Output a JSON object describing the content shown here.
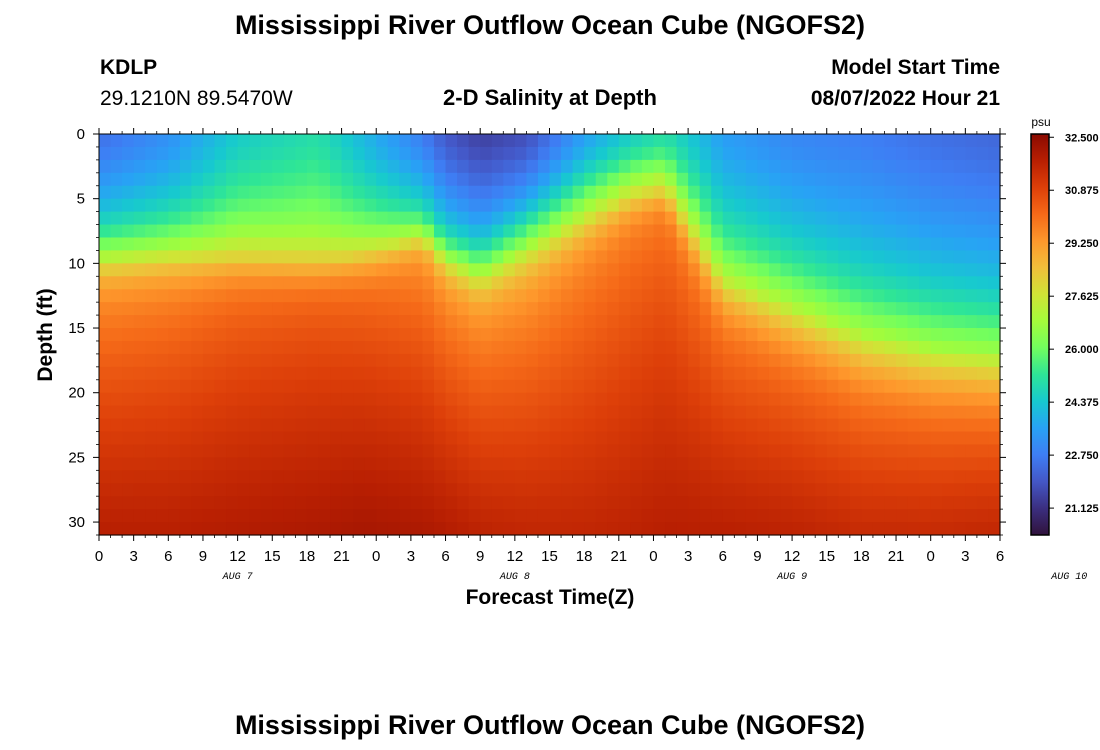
{
  "header": {
    "title": "Mississippi River Outflow Ocean Cube (NGOFS2)",
    "station_id": "KDLP",
    "coords": "29.1210N  89.5470W",
    "plot_title": "2-D Salinity at Depth",
    "model_start_label": "Model Start Time",
    "model_start_value": "08/07/2022 Hour 21"
  },
  "footer": {
    "title": "Mississippi River Outflow Ocean Cube (NGOFS2)"
  },
  "colors": {
    "palette": [
      "#30123b",
      "#3b2f80",
      "#4457c6",
      "#3e7ef4",
      "#28a2f5",
      "#17c9cf",
      "#2ee597",
      "#72fe5e",
      "#a4fc3b",
      "#d0e436",
      "#f0bf3a",
      "#fe982c",
      "#f56918",
      "#dd3f09",
      "#b81f02",
      "#8a0a01"
    ]
  },
  "chart_data": {
    "type": "heatmap",
    "title": "2-D Salinity at Depth",
    "xlabel": "Forecast Time(Z)",
    "ylabel": "Depth (ft)",
    "x_ticks": [
      "0",
      "3",
      "6",
      "9",
      "12",
      "15",
      "18",
      "21",
      "0",
      "3",
      "6",
      "9",
      "12",
      "15",
      "18",
      "21",
      "0",
      "3",
      "6",
      "9",
      "12",
      "15",
      "18",
      "21",
      "0",
      "3",
      "6"
    ],
    "date_labels": [
      {
        "label": "AUG 7",
        "hour_index": 3
      },
      {
        "label": "AUG 8",
        "hour_index": 27
      },
      {
        "label": "AUG 9",
        "hour_index": 51
      },
      {
        "label": "AUG 10",
        "hour_index": 75
      }
    ],
    "x_range_hours": [
      0,
      78
    ],
    "y_ticks": [
      0,
      5,
      10,
      15,
      20,
      25,
      30
    ],
    "ylim": [
      0,
      31
    ],
    "colorbar": {
      "unit": "psu",
      "ticks": [
        "32.500",
        "30.875",
        "29.250",
        "27.625",
        "26.000",
        "24.375",
        "22.750",
        "21.125"
      ],
      "min": 20.3,
      "max": 32.6
    },
    "profile_keypoints": [
      {
        "hour": 0,
        "halocline_ft": 9.5,
        "width_ft": 2.2,
        "surface": 22.5,
        "deep": 31.8
      },
      {
        "hour": 6,
        "halocline_ft": 9.3,
        "width_ft": 2.4,
        "surface": 23.2,
        "deep": 31.8
      },
      {
        "hour": 12,
        "halocline_ft": 9.5,
        "width_ft": 2.5,
        "surface": 24.5,
        "deep": 31.9
      },
      {
        "hour": 19,
        "halocline_ft": 10.0,
        "width_ft": 2.2,
        "surface": 25.0,
        "deep": 32.0
      },
      {
        "hour": 23,
        "halocline_ft": 9.2,
        "width_ft": 2.2,
        "surface": 24.0,
        "deep": 32.1
      },
      {
        "hour": 28,
        "halocline_ft": 7.8,
        "width_ft": 1.6,
        "surface": 22.8,
        "deep": 32.0
      },
      {
        "hour": 30,
        "halocline_ft": 9.5,
        "width_ft": 2.0,
        "surface": 22.0,
        "deep": 31.9
      },
      {
        "hour": 33,
        "halocline_ft": 10.5,
        "width_ft": 2.5,
        "surface": 21.5,
        "deep": 31.7
      },
      {
        "hour": 37,
        "halocline_ft": 8.5,
        "width_ft": 3.0,
        "surface": 21.8,
        "deep": 31.6
      },
      {
        "hour": 42,
        "halocline_ft": 6.5,
        "width_ft": 3.0,
        "surface": 23.5,
        "deep": 31.6
      },
      {
        "hour": 46,
        "halocline_ft": 5.0,
        "width_ft": 2.5,
        "surface": 24.5,
        "deep": 31.7
      },
      {
        "hour": 49,
        "halocline_ft": 4.5,
        "width_ft": 2.0,
        "surface": 25.0,
        "deep": 31.8
      },
      {
        "hour": 54,
        "halocline_ft": 11.5,
        "width_ft": 3.0,
        "surface": 23.5,
        "deep": 31.8
      },
      {
        "hour": 60,
        "halocline_ft": 13.5,
        "width_ft": 3.5,
        "surface": 23.0,
        "deep": 31.7
      },
      {
        "hour": 66,
        "halocline_ft": 15.5,
        "width_ft": 3.8,
        "surface": 22.8,
        "deep": 31.5
      },
      {
        "hour": 72,
        "halocline_ft": 16.5,
        "width_ft": 4.0,
        "surface": 22.5,
        "deep": 31.5
      },
      {
        "hour": 78,
        "halocline_ft": 17.0,
        "width_ft": 4.0,
        "surface": 22.3,
        "deep": 31.6
      }
    ]
  }
}
